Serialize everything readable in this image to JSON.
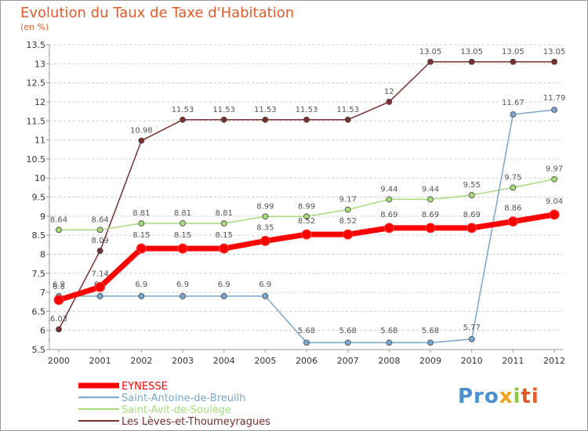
{
  "header": {
    "title": "Evolution du Taux de Taxe d'Habitation",
    "subtitle": "(en %)"
  },
  "logo": {
    "text": "Proxiti"
  },
  "chart_data": {
    "type": "line",
    "title": "Evolution du Taux de Taxe d'Habitation",
    "ylabel": "(en %)",
    "xlabel": "",
    "ylim": [
      5.5,
      13.5
    ],
    "yticks": [
      "5.5",
      "6",
      "6.5",
      "7",
      "7.5",
      "8",
      "8.5",
      "9",
      "9.5",
      "10",
      "10.5",
      "11",
      "11.5",
      "12",
      "12.5",
      "13",
      "13.5"
    ],
    "x": [
      "2000",
      "2001",
      "2002",
      "2003",
      "2004",
      "2005",
      "2006",
      "2007",
      "2008",
      "2009",
      "2010",
      "2011",
      "2012"
    ],
    "grid": "horizontal-dashed",
    "legend_position": "bottom-left",
    "series": [
      {
        "name": "Les Lèves-et-Thoumeyragues",
        "color": "#7a2e2e",
        "values": [
          6.03,
          8.09,
          10.98,
          11.53,
          11.53,
          11.53,
          11.53,
          11.53,
          12,
          13.05,
          13.05,
          13.05,
          13.05
        ],
        "labels": [
          "6.03",
          "8.09",
          "10.98",
          "11.53",
          "11.53",
          "11.53",
          "11.53",
          "11.53",
          "12",
          "13.05",
          "13.05",
          "13.05",
          "13.05"
        ]
      },
      {
        "name": "Saint-Avit-de-Soulège",
        "color": "#a6dc7a",
        "values": [
          8.64,
          8.64,
          8.81,
          8.81,
          8.81,
          8.99,
          8.99,
          9.17,
          9.44,
          9.44,
          9.55,
          9.75,
          9.97
        ],
        "labels": [
          "8.64",
          "8.64",
          "8.81",
          "8.81",
          "8.81",
          "8.99",
          "8.99",
          "9.17",
          "9.44",
          "9.44",
          "9.55",
          "9.75",
          "9.97"
        ]
      },
      {
        "name": "Saint-Antoine-de-Breuilh",
        "color": "#7aa7cf",
        "values": [
          6.9,
          6.9,
          6.9,
          6.9,
          6.9,
          6.9,
          5.68,
          5.68,
          5.68,
          5.68,
          5.77,
          11.67,
          11.79
        ],
        "labels": [
          "6.9",
          "6.9",
          "6.9",
          "6.9",
          "6.9",
          "6.9",
          "5.68",
          "5.68",
          "5.68",
          "5.68",
          "5.77",
          "11.67",
          "11.79"
        ]
      },
      {
        "name": "EYNESSE",
        "color": "#ff0000",
        "values": [
          6.8,
          7.14,
          8.15,
          8.15,
          8.15,
          8.35,
          8.52,
          8.52,
          8.69,
          8.69,
          8.69,
          8.86,
          9.04
        ],
        "labels": [
          "6.8",
          "7.14",
          "8.15",
          "8.15",
          "8.15",
          "8.35",
          "8.52",
          "8.52",
          "8.69",
          "8.69",
          "8.69",
          "8.86",
          "9.04"
        ]
      }
    ],
    "legend": [
      "EYNESSE",
      "Saint-Antoine-de-Breuilh",
      "Saint-Avit-de-Soulège",
      "Les Lèves-et-Thoumeyragues"
    ]
  }
}
